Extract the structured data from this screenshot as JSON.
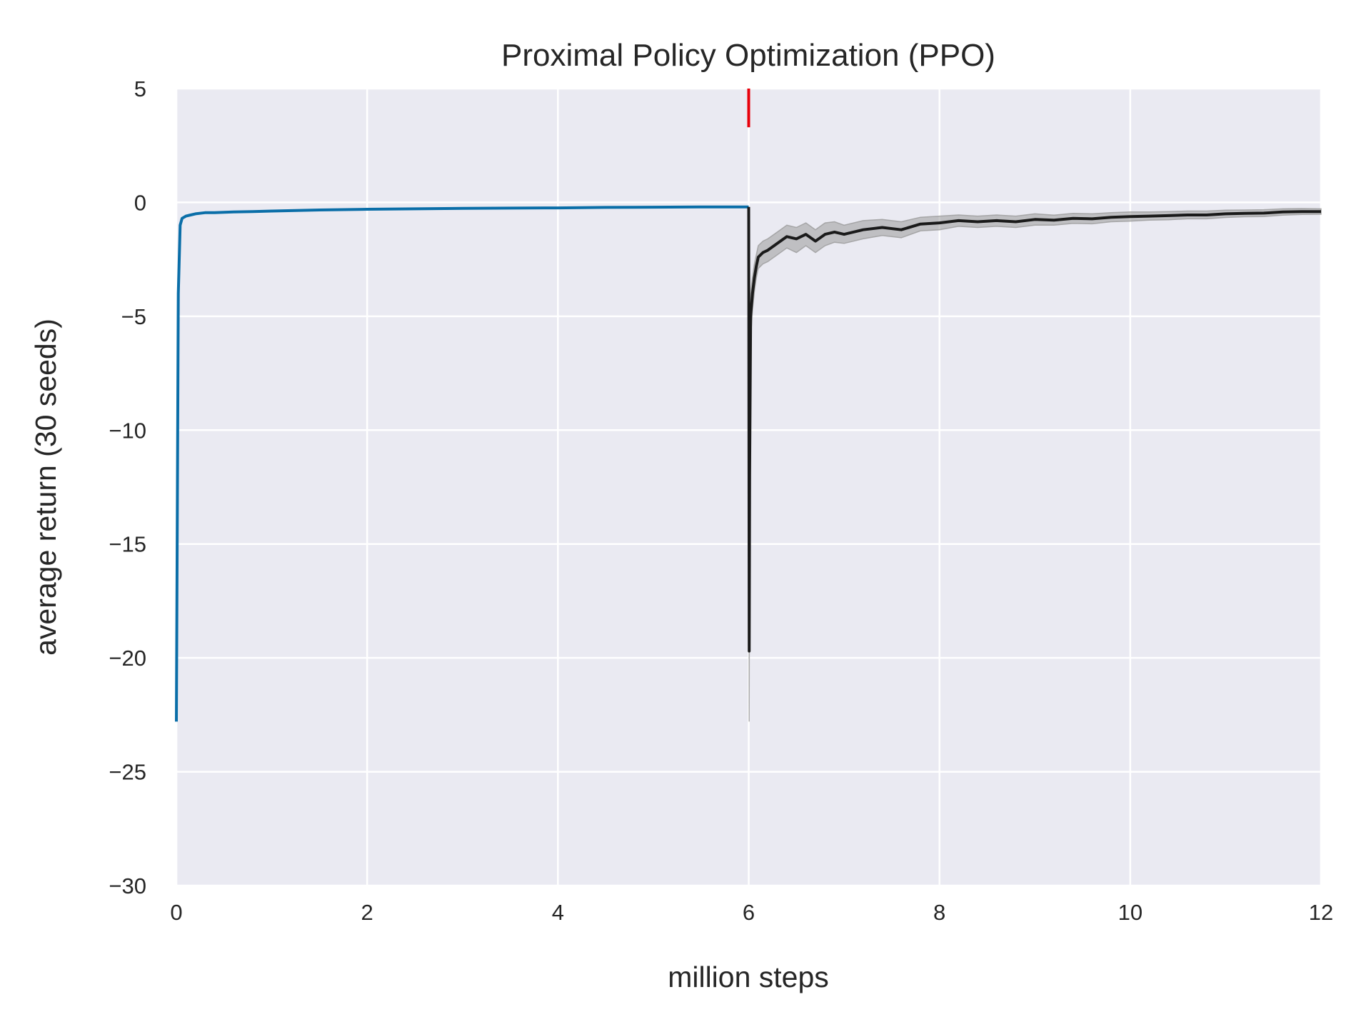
{
  "chart_data": {
    "type": "line",
    "title": "Proximal Policy Optimization (PPO)",
    "xlabel": "million steps",
    "ylabel": "average return (30 seeds)",
    "xlim": [
      0,
      12
    ],
    "ylim": [
      -30,
      5
    ],
    "xticks": [
      0,
      2,
      4,
      6,
      8,
      10,
      12
    ],
    "yticks": [
      5,
      0,
      -5,
      -10,
      -15,
      -20,
      -25,
      -30
    ],
    "grid": true,
    "legend": "none",
    "colors": {
      "background": "#eaeaf2",
      "grid": "#ffffff",
      "phase1": "#0a6ea8",
      "phase2": "#1a1a1a",
      "band": "#9b9b9b",
      "marker": "#e8000b"
    },
    "marker": {
      "x": 6,
      "y_from": 3.3,
      "y_to": 5
    },
    "series": [
      {
        "x": [
          0,
          0.02,
          0.04,
          0.06,
          0.1,
          0.15,
          0.2,
          0.3,
          0.4,
          0.6,
          0.8,
          1.0,
          1.5,
          2.0,
          2.5,
          3.0,
          3.5,
          4.0,
          4.5,
          5.0,
          5.5,
          6.0
        ],
        "y": [
          -22.8,
          -4.0,
          -1.0,
          -0.7,
          -0.6,
          -0.55,
          -0.5,
          -0.45,
          -0.45,
          -0.42,
          -0.4,
          -0.38,
          -0.33,
          -0.3,
          -0.28,
          -0.26,
          -0.25,
          -0.24,
          -0.22,
          -0.21,
          -0.2,
          -0.2
        ]
      },
      {
        "x": [
          6.0,
          6.005,
          6.01,
          6.02,
          6.04,
          6.06,
          6.08,
          6.1,
          6.15,
          6.2,
          6.3,
          6.4,
          6.5,
          6.6,
          6.7,
          6.8,
          6.9,
          7.0,
          7.2,
          7.4,
          7.6,
          7.8,
          8.0,
          8.2,
          8.4,
          8.6,
          8.8,
          9.0,
          9.2,
          9.4,
          9.6,
          9.8,
          10.0,
          10.2,
          10.4,
          10.6,
          10.8,
          11.0,
          11.2,
          11.4,
          11.6,
          11.8,
          12.0
        ],
        "y": [
          -0.2,
          -19.7,
          -12.0,
          -5.0,
          -4.0,
          -3.3,
          -2.8,
          -2.4,
          -2.2,
          -2.1,
          -1.8,
          -1.5,
          -1.6,
          -1.4,
          -1.7,
          -1.4,
          -1.3,
          -1.4,
          -1.2,
          -1.1,
          -1.2,
          -0.95,
          -0.9,
          -0.8,
          -0.85,
          -0.8,
          -0.85,
          -0.75,
          -0.78,
          -0.7,
          -0.72,
          -0.65,
          -0.62,
          -0.6,
          -0.58,
          -0.55,
          -0.55,
          -0.5,
          -0.48,
          -0.47,
          -0.42,
          -0.4,
          -0.4
        ],
        "lower": [
          -0.2,
          -22.8,
          -14.0,
          -6.0,
          -4.7,
          -3.9,
          -3.3,
          -2.9,
          -2.7,
          -2.6,
          -2.3,
          -2.0,
          -2.2,
          -1.9,
          -2.2,
          -1.9,
          -1.75,
          -1.8,
          -1.6,
          -1.45,
          -1.55,
          -1.25,
          -1.2,
          -1.05,
          -1.1,
          -1.05,
          -1.1,
          -1.0,
          -1.0,
          -0.92,
          -0.94,
          -0.85,
          -0.82,
          -0.78,
          -0.76,
          -0.72,
          -0.72,
          -0.66,
          -0.63,
          -0.62,
          -0.56,
          -0.53,
          -0.52
        ],
        "upper": [
          -0.2,
          -16.5,
          -10.0,
          -4.0,
          -3.3,
          -2.7,
          -2.3,
          -1.9,
          -1.7,
          -1.6,
          -1.3,
          -1.0,
          -1.1,
          -0.9,
          -1.2,
          -0.9,
          -0.85,
          -1.0,
          -0.8,
          -0.75,
          -0.85,
          -0.65,
          -0.6,
          -0.55,
          -0.6,
          -0.55,
          -0.6,
          -0.5,
          -0.56,
          -0.48,
          -0.5,
          -0.45,
          -0.42,
          -0.42,
          -0.4,
          -0.38,
          -0.38,
          -0.34,
          -0.33,
          -0.32,
          -0.28,
          -0.27,
          -0.28
        ]
      }
    ]
  }
}
